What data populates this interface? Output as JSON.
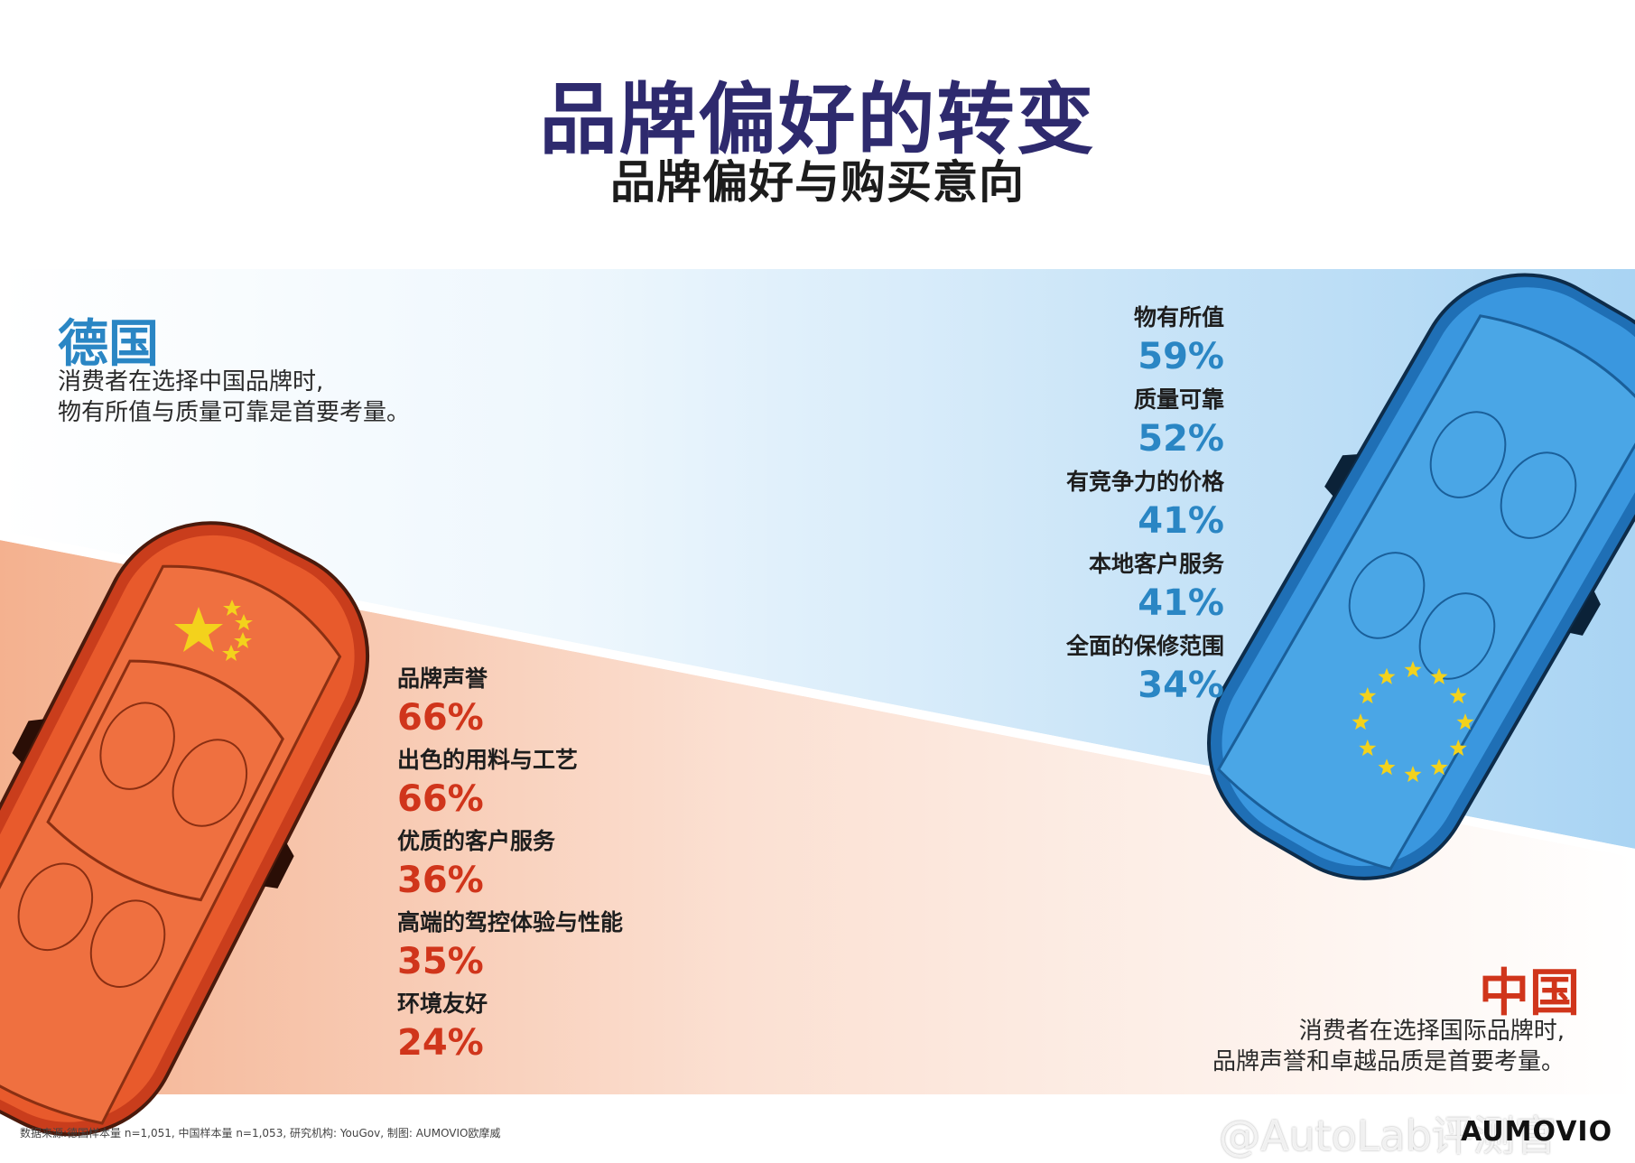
{
  "title": "品牌偏好的转变",
  "subtitle": "品牌偏好与购买意向",
  "germany": {
    "name": "德国",
    "description": "消费者在选择中国品牌时,\n物有所值与质量可靠是首要考量。"
  },
  "china": {
    "name": "中国",
    "description": "消费者在选择国际品牌时,\n品牌声誉和卓越品质是首要考量。"
  },
  "chart_data": [
    {
      "type": "table",
      "name": "德国",
      "categories": [
        "物有所值",
        "质量可靠",
        "有竞争力的价格",
        "本地客户服务",
        "全面的保修范围"
      ],
      "values": [
        59,
        52,
        41,
        41,
        34
      ],
      "labels": [
        "59%",
        "52%",
        "41%",
        "41%",
        "34%"
      ],
      "color": "#2a86c4"
    },
    {
      "type": "table",
      "name": "中国",
      "categories": [
        "品牌声誉",
        "出色的用料与工艺",
        "优质的客户服务",
        "高端的驾控体验与性能",
        "环境友好"
      ],
      "values": [
        66,
        66,
        36,
        35,
        24
      ],
      "labels": [
        "66%",
        "66%",
        "36%",
        "35%",
        "24%"
      ],
      "color": "#d0351b"
    }
  ],
  "footer": "数据来源:德国样本量 n=1,051, 中国样本量 n=1,053, 研究机构: YouGov, 制图: AUMOVIO欧摩威",
  "logo": "AUMOVIO",
  "watermark": "@AutoLab评测官",
  "colors": {
    "title": "#2e2a6e",
    "blue_accent": "#2a86c4",
    "red_accent": "#d0351b",
    "blue_car": "#2f8fd8",
    "red_car": "#e2532a",
    "flag_star": "#f3d21c"
  },
  "icons": [
    "china-flag-stars-icon",
    "eu-stars-icon",
    "red-car-illustration",
    "blue-car-illustration"
  ]
}
